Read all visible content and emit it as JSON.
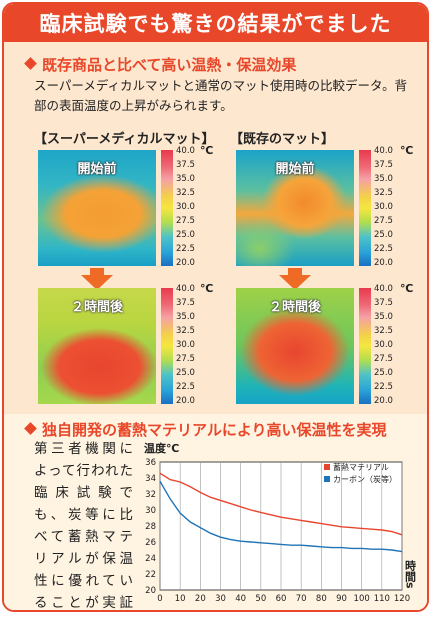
{
  "banner": {
    "title": "臨床試験でも驚きの結果がでました"
  },
  "section1": {
    "heading": "既存商品と比べて高い温熱・保温効果",
    "intro": "スーパーメディカルマットと通常のマット使用時の比較データ。背部の表面温度の上昇がみられます。",
    "panels": [
      {
        "title": "【スーパーメディカルマット】",
        "before_label": "開始前",
        "after_label": "２時間後"
      },
      {
        "title": "【既存のマット】",
        "before_label": "開始前",
        "after_label": "２時間後"
      }
    ],
    "scale": {
      "unit": "℃",
      "ticks": [
        "40.0",
        "37.5",
        "35.0",
        "32.5",
        "30.0",
        "27.5",
        "25.0",
        "22.5",
        "20.0"
      ]
    },
    "colors": {
      "accent": "#e8472a",
      "arrow": "#ef6a25"
    }
  },
  "section2": {
    "heading": "独自開発の蓄熱マテリアルにより高い保温性を実現",
    "paragraph": "第三者機関によって行われた臨床試験でも、炭等に比べて蓄熱マテリアルが保温性に優れていることが実証されました。"
  },
  "chart_data": {
    "type": "line",
    "ylabel": "温度℃",
    "xlabel": "時間s",
    "ylim": [
      20,
      36
    ],
    "xlim": [
      0,
      120
    ],
    "yticks": [
      20,
      22,
      24,
      26,
      28,
      30,
      32,
      34,
      36
    ],
    "xticks": [
      0,
      10,
      20,
      30,
      40,
      50,
      60,
      70,
      80,
      90,
      100,
      110,
      120
    ],
    "grid": "vertical",
    "legend_position": "top-right",
    "series": [
      {
        "name": "蓄熱マテリアル",
        "color": "#e8452f",
        "x": [
          0,
          5,
          10,
          15,
          20,
          25,
          30,
          35,
          40,
          45,
          50,
          55,
          60,
          65,
          70,
          75,
          80,
          85,
          90,
          95,
          100,
          105,
          110,
          115,
          120
        ],
        "values": [
          34.6,
          33.8,
          33.5,
          32.9,
          32.2,
          31.6,
          31.2,
          30.8,
          30.4,
          30.0,
          29.7,
          29.4,
          29.1,
          28.9,
          28.7,
          28.5,
          28.3,
          28.1,
          27.9,
          27.8,
          27.7,
          27.6,
          27.5,
          27.3,
          26.9
        ]
      },
      {
        "name": "カーボン（炭等）",
        "color": "#1f74b8",
        "x": [
          0,
          5,
          10,
          15,
          20,
          25,
          30,
          35,
          40,
          45,
          50,
          55,
          60,
          65,
          70,
          75,
          80,
          85,
          90,
          95,
          100,
          105,
          110,
          115,
          120
        ],
        "values": [
          33.6,
          31.4,
          29.6,
          28.5,
          27.8,
          27.1,
          26.6,
          26.3,
          26.1,
          26.0,
          25.9,
          25.8,
          25.7,
          25.6,
          25.6,
          25.5,
          25.4,
          25.3,
          25.3,
          25.2,
          25.2,
          25.1,
          25.1,
          25.0,
          24.8
        ]
      }
    ]
  }
}
